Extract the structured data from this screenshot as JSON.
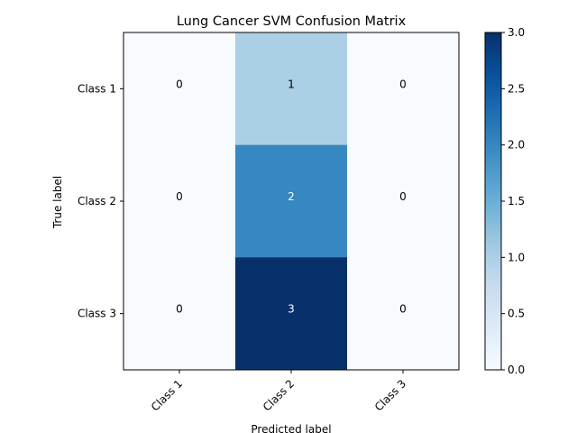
{
  "chart_data": {
    "type": "heatmap",
    "title": "Lung Cancer SVM Confusion Matrix",
    "xlabel": "Predicted label",
    "ylabel": "True label",
    "row_labels": [
      "Class 1",
      "Class 2",
      "Class 3"
    ],
    "col_labels": [
      "Class 1",
      "Class 2",
      "Class 3"
    ],
    "values": [
      [
        0,
        1,
        0
      ],
      [
        0,
        2,
        0
      ],
      [
        0,
        3,
        0
      ]
    ],
    "colorbar": {
      "min": 0,
      "max": 3,
      "ticks": [
        "0.0",
        "0.5",
        "1.0",
        "1.5",
        "2.0",
        "2.5",
        "3.0"
      ],
      "colormap": "Blues"
    }
  }
}
